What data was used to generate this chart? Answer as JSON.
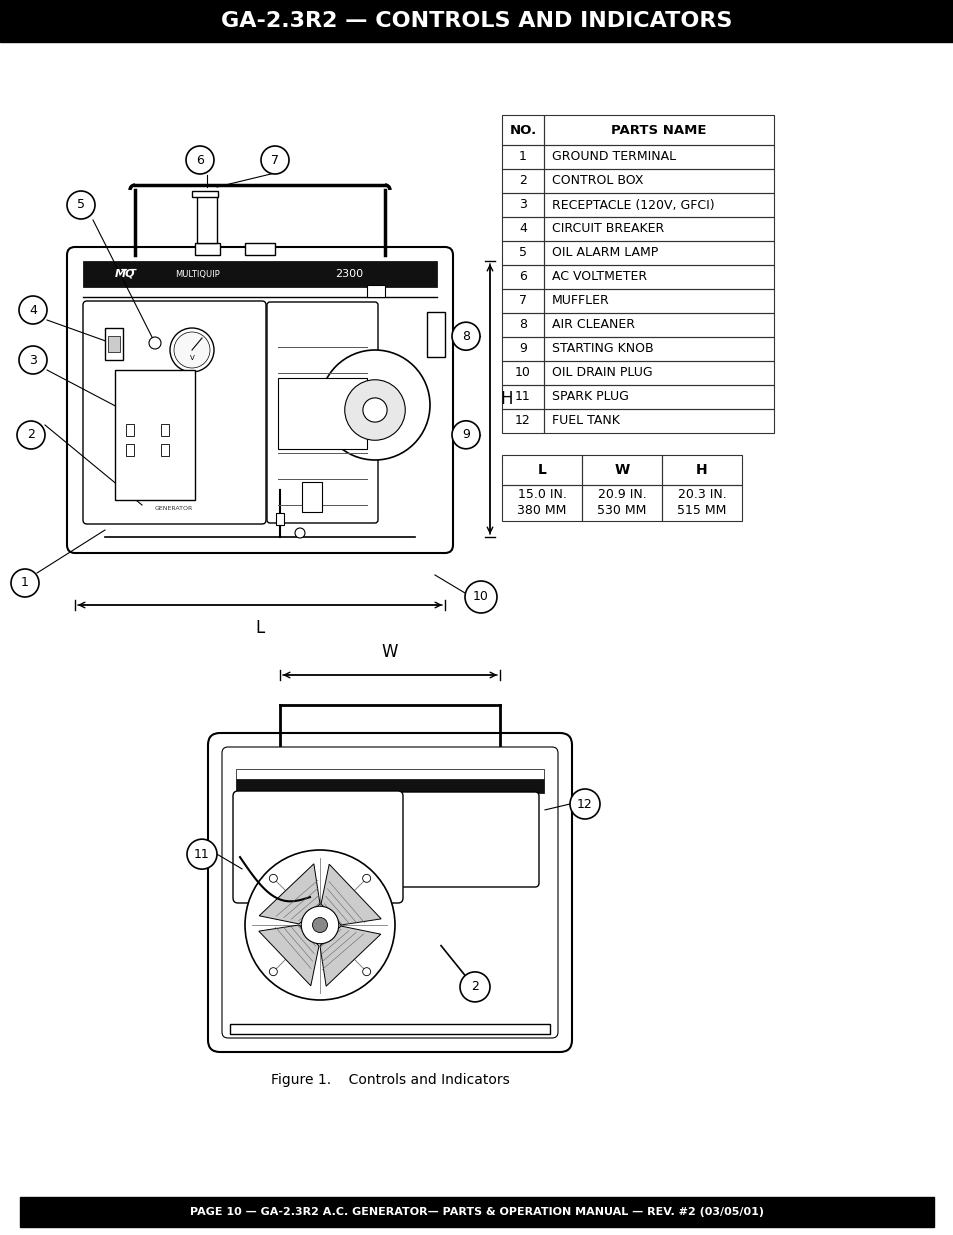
{
  "title": "GA-2.3R2 — CONTROLS AND INDICATORS",
  "footer": "PAGE 10 — GA-2.3R2 A.C. GENERATOR— PARTS & OPERATION MANUAL — REV. #2 (03/05/01)",
  "parts_table_headers": [
    "NO.",
    "PARTS NAME"
  ],
  "parts_table_rows": [
    [
      "1",
      "GROUND TERMINAL"
    ],
    [
      "2",
      "CONTROL BOX"
    ],
    [
      "3",
      "RECEPTACLE (120V, GFCI)"
    ],
    [
      "4",
      "CIRCUIT BREAKER"
    ],
    [
      "5",
      "OIL ALARM LAMP"
    ],
    [
      "6",
      "AC VOLTMETER"
    ],
    [
      "7",
      "MUFFLER"
    ],
    [
      "8",
      "AIR CLEANER"
    ],
    [
      "9",
      "STARTING KNOB"
    ],
    [
      "10",
      "OIL DRAIN PLUG"
    ],
    [
      "11",
      "SPARK PLUG"
    ],
    [
      "12",
      "FUEL TANK"
    ]
  ],
  "dim_headers": [
    "L",
    "W",
    "H"
  ],
  "dim_row1": [
    "15.0 IN.",
    "20.9 IN.",
    "20.3 IN."
  ],
  "dim_row2": [
    "380 MM",
    "530 MM",
    "515 MM"
  ],
  "figure_caption": "Figure 1.    Controls and Indicators",
  "bg_color": "#ffffff",
  "header_bg": "#000000",
  "header_fg": "#ffffff",
  "footer_bg": "#000000",
  "footer_fg": "#ffffff"
}
